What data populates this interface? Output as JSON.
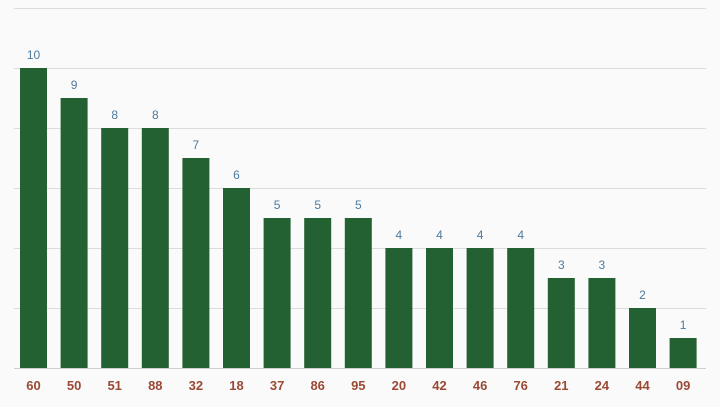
{
  "colors": {
    "bar": "#236133",
    "value_label": "#4f7a9c",
    "category_label": "#9a4a34",
    "grid": "#dcdcdc",
    "background": "#fafafa"
  },
  "chart_data": {
    "type": "bar",
    "title": "",
    "xlabel": "",
    "ylabel": "",
    "categories": [
      "60",
      "50",
      "51",
      "88",
      "32",
      "18",
      "37",
      "86",
      "95",
      "20",
      "42",
      "46",
      "76",
      "21",
      "24",
      "44",
      "09"
    ],
    "values": [
      10,
      9,
      8,
      8,
      7,
      6,
      5,
      5,
      5,
      4,
      4,
      4,
      4,
      3,
      3,
      2,
      1
    ],
    "ylim": [
      0,
      12
    ],
    "grid": true,
    "legend": "none"
  }
}
